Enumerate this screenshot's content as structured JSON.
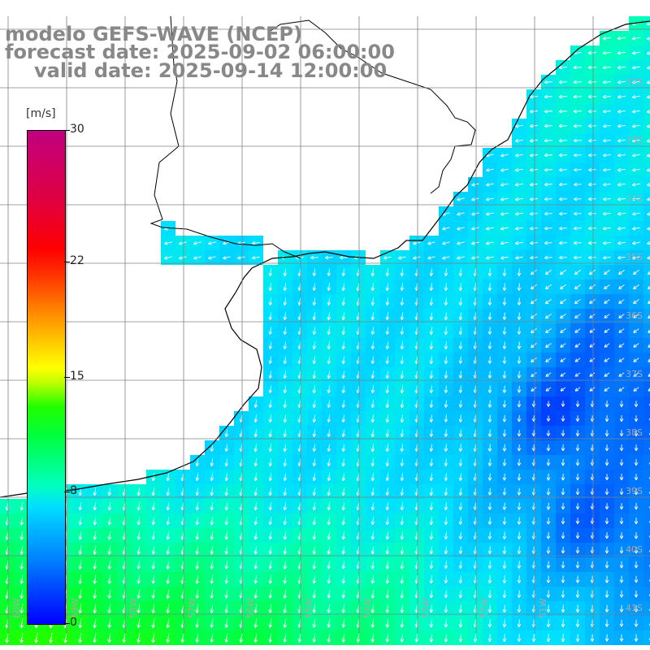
{
  "title": {
    "line1": "modelo GEFS-WAVE (NCEP)",
    "line2": "forecast date: 2025-09-02 06:00:00",
    "line3": "valid date: 2025-09-14 12:00:00"
  },
  "colorbar": {
    "unit": "[m/s]",
    "ticks": [
      "30",
      "22",
      "15",
      "8",
      "0"
    ],
    "tick_values": [
      30,
      22,
      15,
      8,
      0
    ],
    "range": [
      0,
      30
    ]
  },
  "lat_labels": [
    "32S",
    "33S",
    "34S",
    "35S",
    "36S",
    "37S",
    "38S",
    "39S",
    "40S",
    "41S"
  ],
  "lon_labels": [
    "60W",
    "59W",
    "58W",
    "57W",
    "56W",
    "55W",
    "54W",
    "53W",
    "52W",
    "51W"
  ],
  "colors": {
    "land": "#ffffff",
    "grid": "#808080",
    "arrows": "#ffffff",
    "coast": "#000000"
  }
}
